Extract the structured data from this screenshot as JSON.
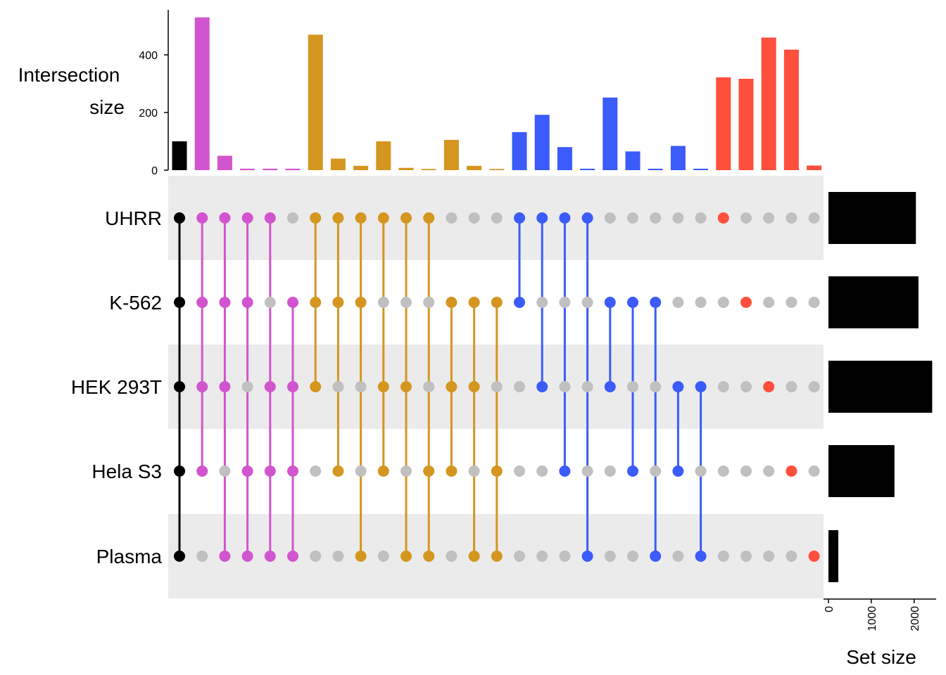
{
  "chart_data": {
    "type": "upset",
    "ylabel_lines": [
      "Intersection",
      "size"
    ],
    "xlabel_sets": "Set size",
    "y_ticks": [
      0,
      200,
      400
    ],
    "ylim": [
      0,
      540
    ],
    "set_size_ticks": [
      0,
      1000,
      2000
    ],
    "set_size_lim": [
      0,
      2450
    ],
    "sets": [
      "UHRR",
      "K-562",
      "HEK 293T",
      "Hela S3",
      "Plasma"
    ],
    "set_sizes": [
      2040,
      2100,
      2420,
      1540,
      230
    ],
    "inactive_color": "#C0C0C0",
    "row_shade_color": "#EBEBEB",
    "intersections": [
      {
        "members": [
          "UHRR",
          "K-562",
          "HEK 293T",
          "Hela S3",
          "Plasma"
        ],
        "value": 100,
        "color": "#000000"
      },
      {
        "members": [
          "UHRR",
          "K-562",
          "HEK 293T",
          "Hela S3"
        ],
        "value": 530,
        "color": "#D155CE"
      },
      {
        "members": [
          "UHRR",
          "K-562",
          "HEK 293T",
          "Plasma"
        ],
        "value": 50,
        "color": "#D155CE"
      },
      {
        "members": [
          "UHRR",
          "K-562",
          "Hela S3",
          "Plasma"
        ],
        "value": 5,
        "color": "#D155CE"
      },
      {
        "members": [
          "UHRR",
          "HEK 293T",
          "Hela S3",
          "Plasma"
        ],
        "value": 5,
        "color": "#D155CE"
      },
      {
        "members": [
          "K-562",
          "HEK 293T",
          "Hela S3",
          "Plasma"
        ],
        "value": 5,
        "color": "#D155CE"
      },
      {
        "members": [
          "UHRR",
          "K-562",
          "HEK 293T"
        ],
        "value": 470,
        "color": "#D4961F"
      },
      {
        "members": [
          "UHRR",
          "K-562",
          "Hela S3"
        ],
        "value": 40,
        "color": "#D4961F"
      },
      {
        "members": [
          "UHRR",
          "K-562",
          "Plasma"
        ],
        "value": 15,
        "color": "#D4961F"
      },
      {
        "members": [
          "UHRR",
          "HEK 293T",
          "Hela S3"
        ],
        "value": 100,
        "color": "#D4961F"
      },
      {
        "members": [
          "UHRR",
          "HEK 293T",
          "Plasma"
        ],
        "value": 8,
        "color": "#D4961F"
      },
      {
        "members": [
          "UHRR",
          "Hela S3",
          "Plasma"
        ],
        "value": 4,
        "color": "#D4961F"
      },
      {
        "members": [
          "K-562",
          "HEK 293T",
          "Hela S3"
        ],
        "value": 105,
        "color": "#D4961F"
      },
      {
        "members": [
          "K-562",
          "HEK 293T",
          "Plasma"
        ],
        "value": 15,
        "color": "#D4961F"
      },
      {
        "members": [
          "K-562",
          "Hela S3",
          "Plasma"
        ],
        "value": 4,
        "color": "#D4961F"
      },
      {
        "members": [
          "UHRR",
          "K-562"
        ],
        "value": 132,
        "color": "#3B5BFA"
      },
      {
        "members": [
          "UHRR",
          "HEK 293T"
        ],
        "value": 192,
        "color": "#3B5BFA"
      },
      {
        "members": [
          "UHRR",
          "Hela S3"
        ],
        "value": 80,
        "color": "#3B5BFA"
      },
      {
        "members": [
          "UHRR",
          "Plasma"
        ],
        "value": 5,
        "color": "#3B5BFA"
      },
      {
        "members": [
          "K-562",
          "HEK 293T"
        ],
        "value": 252,
        "color": "#3B5BFA"
      },
      {
        "members": [
          "K-562",
          "Hela S3"
        ],
        "value": 65,
        "color": "#3B5BFA"
      },
      {
        "members": [
          "K-562",
          "Plasma"
        ],
        "value": 5,
        "color": "#3B5BFA"
      },
      {
        "members": [
          "HEK 293T",
          "Hela S3"
        ],
        "value": 84,
        "color": "#3B5BFA"
      },
      {
        "members": [
          "HEK 293T",
          "Plasma"
        ],
        "value": 5,
        "color": "#3B5BFA"
      },
      {
        "members": [
          "UHRR"
        ],
        "value": 322,
        "color": "#FF4F3D"
      },
      {
        "members": [
          "K-562"
        ],
        "value": 317,
        "color": "#FF4F3D"
      },
      {
        "members": [
          "HEK 293T"
        ],
        "value": 460,
        "color": "#FF4F3D"
      },
      {
        "members": [
          "Hela S3"
        ],
        "value": 418,
        "color": "#FF4F3D"
      },
      {
        "members": [
          "Plasma"
        ],
        "value": 16,
        "color": "#FF4F3D"
      }
    ]
  }
}
